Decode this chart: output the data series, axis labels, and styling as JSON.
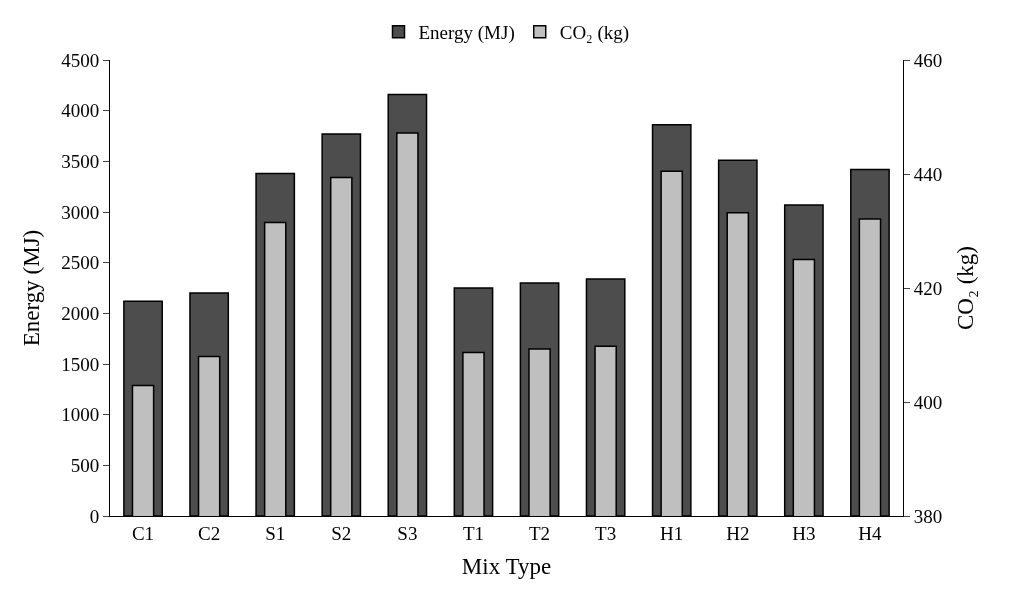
{
  "chart_data": {
    "type": "bar",
    "xlabel": "Mix Type",
    "ylabel": "Energy (MJ)",
    "y2label": "CO₂ (kg)",
    "categories": [
      "C1",
      "C2",
      "S1",
      "S2",
      "S3",
      "T1",
      "T2",
      "T3",
      "H1",
      "H2",
      "H3",
      "H4"
    ],
    "series": [
      {
        "name": "Energy (MJ)",
        "color": "#4d4d4d",
        "values": [
          2120,
          2200,
          3380,
          3770,
          4160,
          2250,
          2300,
          2340,
          3860,
          3510,
          3070,
          3420
        ]
      },
      {
        "name": "CO₂ (kg)",
        "color": "#bfbfbf",
        "axis": "y2",
        "values": [
          402.9,
          408.0,
          431.5,
          439.4,
          447.2,
          408.7,
          409.3,
          409.8,
          440.5,
          433.2,
          425.0,
          432.1
        ]
      }
    ],
    "ylim": [
      0,
      4500
    ],
    "yticks": [
      0,
      500,
      1000,
      1500,
      2000,
      2500,
      3000,
      3500,
      4000,
      4500
    ],
    "y2lim": [
      380,
      460
    ],
    "y2ticks": [
      380,
      400,
      420,
      440,
      460
    ],
    "legend": "top"
  }
}
